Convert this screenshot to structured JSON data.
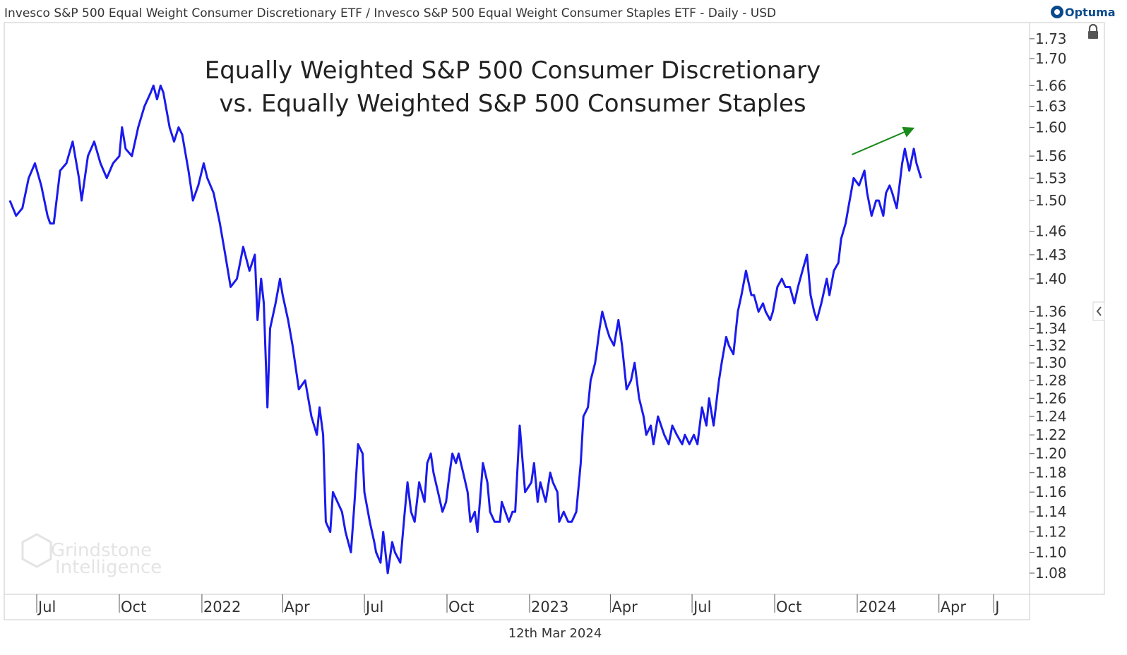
{
  "header": {
    "instrument": "Invesco S&P 500 Equal Weight Consumer Discretionary ETF / Invesco S&P 500 Equal Weight Consumer Staples ETF - Daily - USD",
    "brand": "Optuma"
  },
  "footer": {
    "date": "12th Mar 2024"
  },
  "watermark": {
    "line1": "Grindstone",
    "line2": "Intelligence"
  },
  "colors": {
    "series": "#1a1aee",
    "arrow": "#1a8a1a",
    "grid": "#d0d0d0",
    "brand": "#0a4a8c"
  },
  "icons": {
    "lock": "lock-icon",
    "collapse": "chevron-left-icon",
    "logo": "optuma-logo-icon"
  },
  "chart_data": {
    "type": "line",
    "title": "Equally Weighted S&P 500 Consumer Discretionary",
    "subtitle": "vs. Equally Weighted S&P 500 Consumer Staples",
    "xlabel": "",
    "ylabel": "",
    "y_scale": "log",
    "ylim": [
      1.06,
      1.76
    ],
    "xlim": [
      "2021-05-28",
      "2024-06-10"
    ],
    "grid": false,
    "legend": "none",
    "y_ticks": [
      "1.08",
      "1.10",
      "1.12",
      "1.14",
      "1.16",
      "1.18",
      "1.20",
      "1.22",
      "1.24",
      "1.26",
      "1.28",
      "1.30",
      "1.32",
      "1.34",
      "1.36",
      "1.40",
      "1.43",
      "1.46",
      "1.50",
      "1.53",
      "1.56",
      "1.60",
      "1.63",
      "1.66",
      "1.70",
      "1.73"
    ],
    "x_ticks": [
      {
        "label": "Jul",
        "date": "2021-07-01"
      },
      {
        "label": "Oct",
        "date": "2021-10-01"
      },
      {
        "label": "2022",
        "date": "2022-01-01"
      },
      {
        "label": "Apr",
        "date": "2022-04-01"
      },
      {
        "label": "Jul",
        "date": "2022-07-01"
      },
      {
        "label": "Oct",
        "date": "2022-10-01"
      },
      {
        "label": "2023",
        "date": "2023-01-01"
      },
      {
        "label": "Apr",
        "date": "2023-04-01"
      },
      {
        "label": "Jul",
        "date": "2023-07-01"
      },
      {
        "label": "Oct",
        "date": "2023-10-01"
      },
      {
        "label": "2024",
        "date": "2024-01-01"
      },
      {
        "label": "Apr",
        "date": "2024-04-01"
      },
      {
        "label": "J",
        "date": "2024-06-01"
      }
    ],
    "series": [
      {
        "name": "",
        "points": [
          [
            "2021-06-01",
            1.5
          ],
          [
            "2021-06-08",
            1.48
          ],
          [
            "2021-06-15",
            1.49
          ],
          [
            "2021-06-22",
            1.53
          ],
          [
            "2021-06-29",
            1.55
          ],
          [
            "2021-07-06",
            1.52
          ],
          [
            "2021-07-13",
            1.48
          ],
          [
            "2021-07-16",
            1.47
          ],
          [
            "2021-07-20",
            1.47
          ],
          [
            "2021-07-27",
            1.54
          ],
          [
            "2021-08-03",
            1.55
          ],
          [
            "2021-08-10",
            1.58
          ],
          [
            "2021-08-17",
            1.53
          ],
          [
            "2021-08-20",
            1.5
          ],
          [
            "2021-08-27",
            1.56
          ],
          [
            "2021-09-03",
            1.58
          ],
          [
            "2021-09-10",
            1.55
          ],
          [
            "2021-09-17",
            1.53
          ],
          [
            "2021-09-24",
            1.55
          ],
          [
            "2021-10-01",
            1.56
          ],
          [
            "2021-10-04",
            1.6
          ],
          [
            "2021-10-08",
            1.57
          ],
          [
            "2021-10-15",
            1.56
          ],
          [
            "2021-10-22",
            1.6
          ],
          [
            "2021-10-29",
            1.63
          ],
          [
            "2021-11-05",
            1.65
          ],
          [
            "2021-11-08",
            1.66
          ],
          [
            "2021-11-12",
            1.64
          ],
          [
            "2021-11-16",
            1.66
          ],
          [
            "2021-11-19",
            1.65
          ],
          [
            "2021-11-26",
            1.6
          ],
          [
            "2021-12-01",
            1.58
          ],
          [
            "2021-12-06",
            1.6
          ],
          [
            "2021-12-10",
            1.59
          ],
          [
            "2021-12-17",
            1.54
          ],
          [
            "2021-12-22",
            1.5
          ],
          [
            "2021-12-28",
            1.52
          ],
          [
            "2022-01-03",
            1.55
          ],
          [
            "2022-01-07",
            1.53
          ],
          [
            "2022-01-14",
            1.51
          ],
          [
            "2022-01-21",
            1.47
          ],
          [
            "2022-01-27",
            1.43
          ],
          [
            "2022-02-02",
            1.39
          ],
          [
            "2022-02-09",
            1.4
          ],
          [
            "2022-02-16",
            1.44
          ],
          [
            "2022-02-23",
            1.41
          ],
          [
            "2022-03-01",
            1.43
          ],
          [
            "2022-03-04",
            1.35
          ],
          [
            "2022-03-08",
            1.4
          ],
          [
            "2022-03-11",
            1.37
          ],
          [
            "2022-03-15",
            1.25
          ],
          [
            "2022-03-18",
            1.34
          ],
          [
            "2022-03-24",
            1.37
          ],
          [
            "2022-03-29",
            1.4
          ],
          [
            "2022-04-01",
            1.38
          ],
          [
            "2022-04-07",
            1.35
          ],
          [
            "2022-04-12",
            1.32
          ],
          [
            "2022-04-19",
            1.27
          ],
          [
            "2022-04-26",
            1.28
          ],
          [
            "2022-05-03",
            1.24
          ],
          [
            "2022-05-09",
            1.22
          ],
          [
            "2022-05-12",
            1.25
          ],
          [
            "2022-05-16",
            1.22
          ],
          [
            "2022-05-19",
            1.13
          ],
          [
            "2022-05-24",
            1.12
          ],
          [
            "2022-05-27",
            1.16
          ],
          [
            "2022-06-01",
            1.15
          ],
          [
            "2022-06-06",
            1.14
          ],
          [
            "2022-06-10",
            1.12
          ],
          [
            "2022-06-16",
            1.1
          ],
          [
            "2022-06-20",
            1.15
          ],
          [
            "2022-06-24",
            1.21
          ],
          [
            "2022-06-29",
            1.2
          ],
          [
            "2022-07-01",
            1.16
          ],
          [
            "2022-07-07",
            1.13
          ],
          [
            "2022-07-12",
            1.11
          ],
          [
            "2022-07-14",
            1.1
          ],
          [
            "2022-07-19",
            1.09
          ],
          [
            "2022-07-22",
            1.12
          ],
          [
            "2022-07-27",
            1.08
          ],
          [
            "2022-08-01",
            1.11
          ],
          [
            "2022-08-04",
            1.1
          ],
          [
            "2022-08-10",
            1.09
          ],
          [
            "2022-08-15",
            1.14
          ],
          [
            "2022-08-18",
            1.17
          ],
          [
            "2022-08-22",
            1.14
          ],
          [
            "2022-08-26",
            1.13
          ],
          [
            "2022-08-31",
            1.17
          ],
          [
            "2022-09-06",
            1.15
          ],
          [
            "2022-09-09",
            1.19
          ],
          [
            "2022-09-13",
            1.2
          ],
          [
            "2022-09-16",
            1.18
          ],
          [
            "2022-09-21",
            1.16
          ],
          [
            "2022-09-26",
            1.14
          ],
          [
            "2022-09-30",
            1.15
          ],
          [
            "2022-10-04",
            1.18
          ],
          [
            "2022-10-07",
            1.2
          ],
          [
            "2022-10-11",
            1.19
          ],
          [
            "2022-10-14",
            1.2
          ],
          [
            "2022-10-19",
            1.18
          ],
          [
            "2022-10-24",
            1.16
          ],
          [
            "2022-10-27",
            1.13
          ],
          [
            "2022-11-01",
            1.14
          ],
          [
            "2022-11-04",
            1.12
          ],
          [
            "2022-11-10",
            1.19
          ],
          [
            "2022-11-15",
            1.17
          ],
          [
            "2022-11-18",
            1.14
          ],
          [
            "2022-11-23",
            1.13
          ],
          [
            "2022-11-29",
            1.13
          ],
          [
            "2022-12-01",
            1.15
          ],
          [
            "2022-12-05",
            1.14
          ],
          [
            "2022-12-09",
            1.13
          ],
          [
            "2022-12-13",
            1.14
          ],
          [
            "2022-12-16",
            1.14
          ],
          [
            "2022-12-21",
            1.23
          ],
          [
            "2022-12-27",
            1.16
          ],
          [
            "2023-01-03",
            1.17
          ],
          [
            "2023-01-06",
            1.19
          ],
          [
            "2023-01-10",
            1.15
          ],
          [
            "2023-01-13",
            1.17
          ],
          [
            "2023-01-19",
            1.15
          ],
          [
            "2023-01-24",
            1.18
          ],
          [
            "2023-01-27",
            1.17
          ],
          [
            "2023-02-01",
            1.16
          ],
          [
            "2023-02-03",
            1.13
          ],
          [
            "2023-02-08",
            1.14
          ],
          [
            "2023-02-13",
            1.13
          ],
          [
            "2023-02-17",
            1.13
          ],
          [
            "2023-02-22",
            1.14
          ],
          [
            "2023-02-27",
            1.19
          ],
          [
            "2023-03-02",
            1.24
          ],
          [
            "2023-03-07",
            1.25
          ],
          [
            "2023-03-10",
            1.28
          ],
          [
            "2023-03-15",
            1.3
          ],
          [
            "2023-03-20",
            1.34
          ],
          [
            "2023-03-23",
            1.36
          ],
          [
            "2023-03-28",
            1.34
          ],
          [
            "2023-03-31",
            1.33
          ],
          [
            "2023-04-05",
            1.32
          ],
          [
            "2023-04-10",
            1.35
          ],
          [
            "2023-04-14",
            1.32
          ],
          [
            "2023-04-19",
            1.27
          ],
          [
            "2023-04-24",
            1.28
          ],
          [
            "2023-04-28",
            1.3
          ],
          [
            "2023-05-03",
            1.26
          ],
          [
            "2023-05-08",
            1.24
          ],
          [
            "2023-05-11",
            1.22
          ],
          [
            "2023-05-16",
            1.23
          ],
          [
            "2023-05-19",
            1.21
          ],
          [
            "2023-05-24",
            1.24
          ],
          [
            "2023-05-31",
            1.22
          ],
          [
            "2023-06-05",
            1.21
          ],
          [
            "2023-06-09",
            1.23
          ],
          [
            "2023-06-14",
            1.22
          ],
          [
            "2023-06-20",
            1.21
          ],
          [
            "2023-06-23",
            1.22
          ],
          [
            "2023-06-28",
            1.21
          ],
          [
            "2023-07-03",
            1.22
          ],
          [
            "2023-07-07",
            1.21
          ],
          [
            "2023-07-12",
            1.25
          ],
          [
            "2023-07-17",
            1.23
          ],
          [
            "2023-07-20",
            1.26
          ],
          [
            "2023-07-25",
            1.23
          ],
          [
            "2023-07-31",
            1.28
          ],
          [
            "2023-08-03",
            1.3
          ],
          [
            "2023-08-08",
            1.33
          ],
          [
            "2023-08-11",
            1.32
          ],
          [
            "2023-08-16",
            1.31
          ],
          [
            "2023-08-21",
            1.36
          ],
          [
            "2023-08-25",
            1.38
          ],
          [
            "2023-08-30",
            1.41
          ],
          [
            "2023-09-05",
            1.38
          ],
          [
            "2023-09-08",
            1.38
          ],
          [
            "2023-09-13",
            1.36
          ],
          [
            "2023-09-18",
            1.37
          ],
          [
            "2023-09-21",
            1.36
          ],
          [
            "2023-09-26",
            1.35
          ],
          [
            "2023-09-29",
            1.36
          ],
          [
            "2023-10-04",
            1.39
          ],
          [
            "2023-10-09",
            1.4
          ],
          [
            "2023-10-13",
            1.39
          ],
          [
            "2023-10-18",
            1.39
          ],
          [
            "2023-10-23",
            1.37
          ],
          [
            "2023-10-27",
            1.39
          ],
          [
            "2023-11-01",
            1.41
          ],
          [
            "2023-11-06",
            1.43
          ],
          [
            "2023-11-10",
            1.38
          ],
          [
            "2023-11-14",
            1.36
          ],
          [
            "2023-11-17",
            1.35
          ],
          [
            "2023-11-22",
            1.37
          ],
          [
            "2023-11-28",
            1.4
          ],
          [
            "2023-12-01",
            1.38
          ],
          [
            "2023-12-06",
            1.41
          ],
          [
            "2023-12-11",
            1.42
          ],
          [
            "2023-12-14",
            1.45
          ],
          [
            "2023-12-19",
            1.47
          ],
          [
            "2023-12-22",
            1.49
          ],
          [
            "2023-12-28",
            1.53
          ],
          [
            "2024-01-03",
            1.52
          ],
          [
            "2024-01-09",
            1.54
          ],
          [
            "2024-01-12",
            1.51
          ],
          [
            "2024-01-17",
            1.48
          ],
          [
            "2024-01-22",
            1.5
          ],
          [
            "2024-01-25",
            1.5
          ],
          [
            "2024-01-30",
            1.48
          ],
          [
            "2024-02-02",
            1.51
          ],
          [
            "2024-02-06",
            1.52
          ],
          [
            "2024-02-09",
            1.51
          ],
          [
            "2024-02-14",
            1.49
          ],
          [
            "2024-02-20",
            1.55
          ],
          [
            "2024-02-23",
            1.57
          ],
          [
            "2024-02-28",
            1.54
          ],
          [
            "2024-03-04",
            1.57
          ],
          [
            "2024-03-07",
            1.55
          ],
          [
            "2024-03-12",
            1.53
          ]
        ]
      }
    ],
    "annotations": [
      {
        "type": "arrow",
        "from": [
          "2023-12-26",
          1.562
        ],
        "to": [
          "2024-03-02",
          1.598
        ]
      }
    ]
  }
}
